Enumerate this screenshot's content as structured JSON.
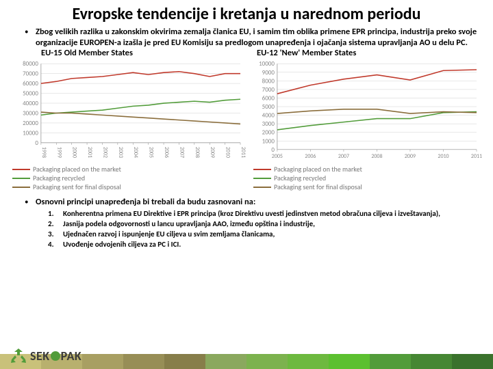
{
  "title": "Evropske tendencije i kretanja u narednom periodu",
  "title_fontsize": 24,
  "bullet1": "Zbog velikih razlika u zakonskim okvirima zemalja članica EU, i samim tim oblika primene EPR principa, industrija preko svoje organizacije EUROPEN-a izašla je pred EU Komisiju sa predlogom unapređenja i ojačanja sistema upravljanja AO u delu PC.",
  "chart_left": {
    "title": "EU-15 Old Member States",
    "type": "line",
    "x_years": [
      1998,
      1999,
      2000,
      2001,
      2002,
      2003,
      2004,
      2005,
      2006,
      2007,
      2008,
      2009,
      2010,
      2011
    ],
    "ylim": [
      0,
      80000
    ],
    "ytick_step": 10000,
    "background_color": "#ffffff",
    "grid_color": "#d0d0d0",
    "axis_color": "#888888",
    "tick_fontsize": 9,
    "series": {
      "placed": {
        "color": "#c0392b",
        "values": [
          60000,
          62000,
          65000,
          66000,
          67000,
          69000,
          71000,
          69000,
          71000,
          72000,
          70000,
          67000,
          70000,
          70000
        ]
      },
      "recycled": {
        "color": "#529c3a",
        "values": [
          28000,
          30000,
          31000,
          32000,
          33000,
          35000,
          37000,
          38000,
          40000,
          41000,
          42000,
          41000,
          43000,
          44000
        ]
      },
      "disposal": {
        "color": "#8a6d3b",
        "values": [
          31000,
          30000,
          30000,
          29000,
          28000,
          27000,
          26000,
          25000,
          24000,
          23000,
          22000,
          21000,
          20000,
          19000
        ]
      }
    }
  },
  "chart_right": {
    "title": "EU-12 'New' Member States",
    "type": "line",
    "x_years": [
      2005,
      2006,
      2007,
      2008,
      2009,
      2010,
      2011
    ],
    "ylim": [
      0,
      10000
    ],
    "ytick_step": 1000,
    "background_color": "#ffffff",
    "grid_color": "#d0d0d0",
    "axis_color": "#888888",
    "tick_fontsize": 9,
    "series": {
      "placed": {
        "color": "#c0392b",
        "values": [
          6500,
          7500,
          8200,
          8700,
          8100,
          9200,
          9300
        ]
      },
      "recycled": {
        "color": "#529c3a",
        "values": [
          2300,
          2800,
          3200,
          3600,
          3600,
          4300,
          4400
        ]
      },
      "disposal": {
        "color": "#8a6d3b",
        "values": [
          4200,
          4500,
          4700,
          4700,
          4200,
          4400,
          4300
        ]
      }
    }
  },
  "legend": {
    "items": [
      {
        "label": "Packaging placed on the market",
        "color": "#c0392b"
      },
      {
        "label": "Packaging recycled",
        "color": "#529c3a"
      },
      {
        "label": "Packaging sent for final disposal",
        "color": "#8a6d3b"
      }
    ]
  },
  "bullet2": "Osnovni principi unapređenja bi trebali da budu zasnovani na:",
  "numbered": [
    "Konherentna primena EU Direktive i EPR principa (kroz Direktivu uvesti jedinstven metod obračuna ciljeva i izveštavanja),",
    "Jasnija podela odgovornosti u lancu upravljanja AAO, između opština i industrije,",
    "Ujednačen razvoj i ispunjenje EU ciljeva u svim zemljama članicama,",
    "Uvođenje odvojenih ciljeva za PC i ICI."
  ],
  "logo": {
    "text_main": "SEK",
    "text_suffix": "PAK",
    "O_color": "#529c3a",
    "main_color": "#3a3a3a",
    "stripe_colors": [
      "#c9c17a",
      "#b8b06e",
      "#a89f62",
      "#978e56",
      "#877e4a",
      "#8aa85e",
      "#7cb24e",
      "#6db93f",
      "#5cc030",
      "#529c3a",
      "#468733",
      "#3a722c"
    ]
  }
}
